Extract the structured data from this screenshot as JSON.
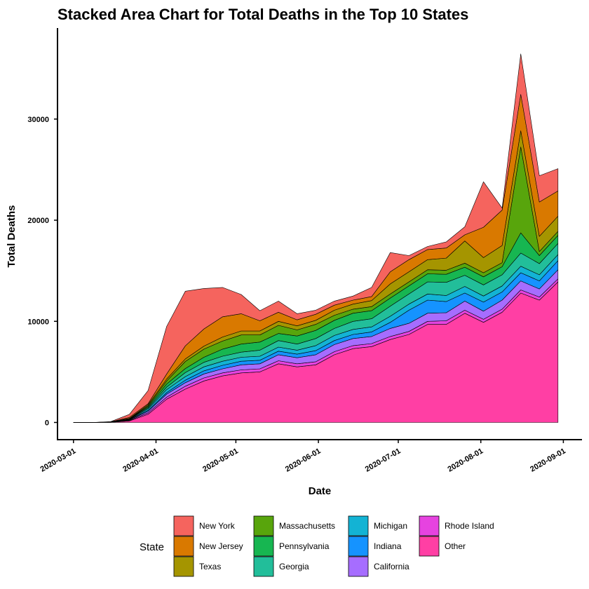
{
  "chart_data": {
    "type": "area",
    "stacked": true,
    "title": "Stacked Area Chart for Total Deaths in the Top 10 States",
    "xlabel": "Date",
    "ylabel": "Total Deaths",
    "x_ticks": [
      "2020-03-01",
      "2020-04-01",
      "2020-05-01",
      "2020-06-01",
      "2020-07-01",
      "2020-08-01",
      "2020-09-01"
    ],
    "y_ticks": [
      0,
      10000,
      20000,
      30000
    ],
    "ylim": [
      -1700,
      39000
    ],
    "xlim": [
      "2020-02-24",
      "2020-09-08"
    ],
    "legend_title": "State",
    "legend_position": "bottom",
    "grid": false,
    "x": [
      "2020-03-01",
      "2020-03-08",
      "2020-03-15",
      "2020-03-22",
      "2020-03-29",
      "2020-04-05",
      "2020-04-12",
      "2020-04-19",
      "2020-04-26",
      "2020-05-03",
      "2020-05-10",
      "2020-05-17",
      "2020-05-24",
      "2020-05-31",
      "2020-06-07",
      "2020-06-14",
      "2020-06-21",
      "2020-06-28",
      "2020-07-05",
      "2020-07-12",
      "2020-07-19",
      "2020-07-26",
      "2020-08-02",
      "2020-08-09",
      "2020-08-16",
      "2020-08-23",
      "2020-08-30"
    ],
    "series": [
      {
        "name": "Other",
        "color": "#FF3FA4",
        "values": [
          0,
          0,
          10,
          150,
          800,
          2300,
          3300,
          4100,
          4600,
          4900,
          5000,
          5800,
          5500,
          5700,
          6700,
          7300,
          7500,
          8200,
          8700,
          9700,
          9700,
          10800,
          9900,
          10900,
          12800,
          12100,
          13900
        ]
      },
      {
        "name": "Rhode Island",
        "color": "#E643E0",
        "values": [
          0,
          0,
          5,
          40,
          150,
          200,
          280,
          300,
          300,
          300,
          300,
          300,
          300,
          300,
          300,
          300,
          300,
          300,
          300,
          300,
          350,
          300,
          300,
          300,
          300,
          300,
          300
        ]
      },
      {
        "name": "California",
        "color": "#A66DFF",
        "values": [
          0,
          0,
          5,
          50,
          150,
          300,
          350,
          400,
          400,
          500,
          500,
          600,
          600,
          700,
          700,
          700,
          700,
          800,
          800,
          800,
          800,
          900,
          800,
          900,
          900,
          800,
          900
        ]
      },
      {
        "name": "Indiana",
        "color": "#1593FF",
        "values": [
          0,
          0,
          5,
          20,
          100,
          150,
          250,
          300,
          350,
          350,
          350,
          350,
          350,
          400,
          400,
          400,
          450,
          600,
          1300,
          1300,
          1100,
          800,
          900,
          800,
          800,
          800,
          900
        ]
      },
      {
        "name": "Michigan",
        "color": "#13B3D4",
        "values": [
          0,
          0,
          5,
          30,
          150,
          300,
          350,
          400,
          400,
          400,
          400,
          400,
          400,
          500,
          500,
          500,
          500,
          600,
          600,
          600,
          600,
          650,
          600,
          600,
          650,
          600,
          600
        ]
      },
      {
        "name": "Georgia",
        "color": "#22BE9A",
        "values": [
          0,
          0,
          5,
          50,
          100,
          250,
          400,
          450,
          500,
          500,
          600,
          650,
          600,
          700,
          700,
          800,
          800,
          1000,
          1000,
          1200,
          1300,
          1100,
          1100,
          1100,
          1300,
          1100,
          1100
        ]
      },
      {
        "name": "Pennsylvania",
        "color": "#17B651",
        "values": [
          0,
          0,
          5,
          20,
          100,
          300,
          400,
          500,
          700,
          800,
          800,
          700,
          800,
          800,
          800,
          800,
          800,
          800,
          800,
          800,
          800,
          800,
          800,
          800,
          2000,
          800,
          800
        ]
      },
      {
        "name": "Massachusetts",
        "color": "#58A50C",
        "values": [
          0,
          0,
          5,
          20,
          100,
          300,
          700,
          800,
          800,
          900,
          700,
          800,
          600,
          600,
          500,
          400,
          400,
          400,
          400,
          400,
          400,
          400,
          400,
          400,
          8500,
          400,
          400
        ]
      },
      {
        "name": "Texas",
        "color": "#A59500",
        "values": [
          0,
          0,
          5,
          20,
          100,
          200,
          250,
          300,
          400,
          400,
          400,
          400,
          400,
          400,
          500,
          500,
          600,
          1000,
          1000,
          1000,
          1200,
          2200,
          1500,
          1700,
          1600,
          1500,
          1500
        ]
      },
      {
        "name": "New Jersey",
        "color": "#D97900",
        "values": [
          0,
          0,
          10,
          100,
          100,
          500,
          1300,
          1700,
          2000,
          1700,
          1000,
          900,
          600,
          600,
          500,
          400,
          400,
          1200,
          1200,
          1000,
          1000,
          600,
          3000,
          3500,
          3600,
          3400,
          2500
        ]
      },
      {
        "name": "New York",
        "color": "#F5645E",
        "values": [
          0,
          0,
          20,
          300,
          1300,
          4700,
          5400,
          4000,
          2900,
          1900,
          1000,
          1100,
          600,
          400,
          400,
          400,
          900,
          1900,
          400,
          300,
          600,
          800,
          4500,
          200,
          4000,
          2600,
          2200
        ]
      }
    ],
    "legend_order": [
      "New York",
      "New Jersey",
      "Texas",
      "Massachusetts",
      "Pennsylvania",
      "Georgia",
      "Michigan",
      "Indiana",
      "California",
      "Rhode Island",
      "Other"
    ]
  }
}
